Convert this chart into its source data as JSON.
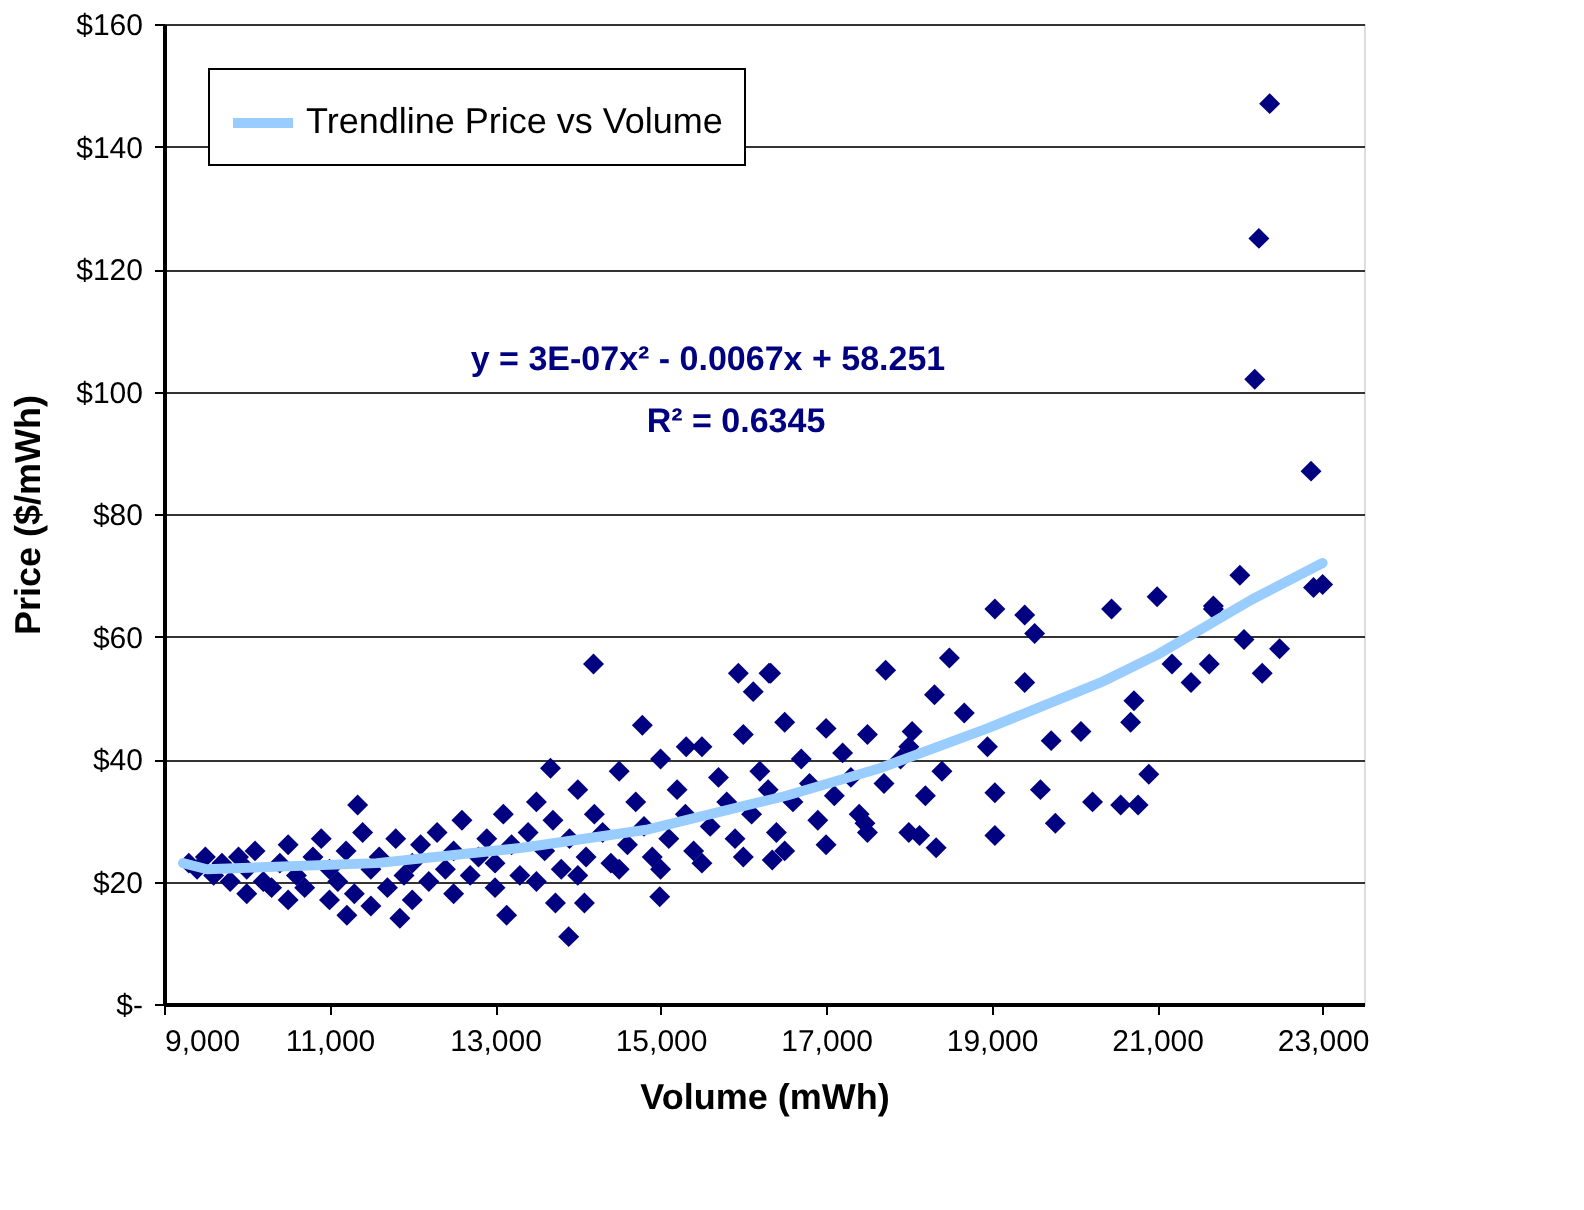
{
  "chart_data": {
    "type": "scatter",
    "xlabel": "Volume (mWh)",
    "ylabel": "Price ($/mWh)",
    "xlim": [
      9000,
      23500
    ],
    "ylim": [
      0,
      160
    ],
    "xticks": [
      {
        "value": 9000,
        "label": "9,000"
      },
      {
        "value": 11000,
        "label": "11,000"
      },
      {
        "value": 13000,
        "label": "13,000"
      },
      {
        "value": 15000,
        "label": "15,000"
      },
      {
        "value": 17000,
        "label": "17,000"
      },
      {
        "value": 19000,
        "label": "19,000"
      },
      {
        "value": 21000,
        "label": "21,000"
      },
      {
        "value": 23000,
        "label": "23,000"
      }
    ],
    "yticks": [
      {
        "value": 0,
        "label": "$-"
      },
      {
        "value": 20,
        "label": "$20"
      },
      {
        "value": 40,
        "label": "$40"
      },
      {
        "value": 60,
        "label": "$60"
      },
      {
        "value": 80,
        "label": "$80"
      },
      {
        "value": 100,
        "label": "$100"
      },
      {
        "value": 120,
        "label": "$120"
      },
      {
        "value": 140,
        "label": "$140"
      },
      {
        "value": 160,
        "label": "$160"
      }
    ],
    "grid": "y",
    "legend": "top left",
    "annotations": [
      "y = 3E-07x² - 0.0067x + 58.251",
      "R² = 0.6345"
    ],
    "series": [
      {
        "color": "#000080",
        "marker": "diamond",
        "x": [
          9300,
          9400,
          9500,
          9600,
          9700,
          9800,
          9900,
          10000,
          10000,
          10100,
          10200,
          10300,
          10400,
          10500,
          10500,
          10600,
          10700,
          10800,
          10900,
          11000,
          11000,
          11100,
          11200,
          11300,
          11400,
          11500,
          11500,
          11600,
          11700,
          11800,
          11900,
          12000,
          12000,
          12100,
          12200,
          12300,
          12400,
          12500,
          12500,
          12600,
          12700,
          12800,
          12900,
          13000,
          13000,
          13100,
          13200,
          13300,
          13400,
          13500,
          13500,
          13600,
          13700,
          13800,
          13900,
          14000,
          14000,
          14100,
          14200,
          14300,
          14400,
          14500,
          14500,
          14600,
          14700,
          14800,
          14900,
          15000,
          15000,
          15100,
          15200,
          15300,
          15400,
          15500,
          15500,
          15600,
          15700,
          15800,
          15900,
          16000,
          16000,
          16100,
          16200,
          16300,
          16400,
          16500,
          16500,
          16600,
          16700,
          16800,
          16900,
          17000,
          17000,
          17100,
          17200,
          17300,
          17400,
          17500,
          17500,
          17700,
          17900,
          18000,
          18000,
          18200,
          18400,
          22360,
          22230,
          22180,
          22860,
          22890,
          23000,
          22000,
          21680,
          21000,
          20450,
          21680,
          19040,
          19400,
          19520,
          22050,
          22480,
          21180,
          21630,
          22270,
          21410,
          17720,
          18490,
          18310,
          16310,
          19400,
          20720,
          20680,
          19720,
          20080,
          18040,
          20900,
          20770,
          20560,
          20220,
          19590,
          19040,
          19770,
          19040,
          18330,
          18130,
          17470,
          16350,
          18950,
          18670,
          14190,
          15940,
          16330,
          16120,
          14780,
          15310,
          13670,
          11340,
          13140,
          13890,
          14990,
          11850,
          11210,
          13730,
          14080
        ],
        "values": [
          23,
          22,
          24,
          21,
          23,
          20,
          24,
          18,
          22,
          25,
          20,
          19,
          23,
          17,
          26,
          21,
          19,
          24,
          27,
          17,
          22,
          20,
          25,
          18,
          28,
          16,
          22,
          24,
          19,
          27,
          21,
          17,
          23,
          26,
          20,
          28,
          22,
          18,
          25,
          30,
          21,
          24,
          27,
          19,
          23,
          31,
          26,
          21,
          28,
          20,
          33,
          25,
          30,
          22,
          27,
          21,
          35,
          24,
          31,
          28,
          23,
          22,
          38,
          26,
          33,
          29,
          24,
          22,
          40,
          27,
          35,
          31,
          25,
          23,
          42,
          29,
          37,
          33,
          27,
          24,
          44,
          31,
          38,
          35,
          28,
          25,
          46,
          33,
          40,
          36,
          30,
          26,
          45,
          34,
          41,
          37,
          31,
          28,
          44,
          36,
          40,
          28,
          42,
          34,
          38,
          147,
          125,
          102,
          87,
          68,
          68.5,
          70,
          65,
          66.5,
          64.5,
          64.5,
          64.5,
          63.5,
          60.5,
          59.5,
          58,
          55.5,
          55.5,
          54,
          52.5,
          54.5,
          56.5,
          50.5,
          54,
          52.5,
          49.5,
          46,
          43,
          44.5,
          44.5,
          37.5,
          32.5,
          32.5,
          33,
          35,
          34.5,
          29.5,
          27.5,
          25.5,
          27.5,
          29.5,
          23.5,
          42,
          47.5,
          55.5,
          54,
          54,
          51,
          45.5,
          42,
          38.5,
          32.5,
          14.5,
          11,
          17.5,
          14,
          14.5,
          16.5,
          16.5
        ]
      },
      {
        "type": "line",
        "name": "Trendline Price vs Volume",
        "color": "#99ccff",
        "x": [
          9230,
          9520,
          11570,
          13330,
          14850,
          16060,
          16520,
          17650,
          18950,
          20320,
          21000,
          22140,
          23000
        ],
        "values": [
          23,
          22,
          23,
          25.5,
          28.5,
          32.5,
          34,
          38.5,
          45,
          52.5,
          57,
          66,
          72
        ]
      }
    ]
  }
}
